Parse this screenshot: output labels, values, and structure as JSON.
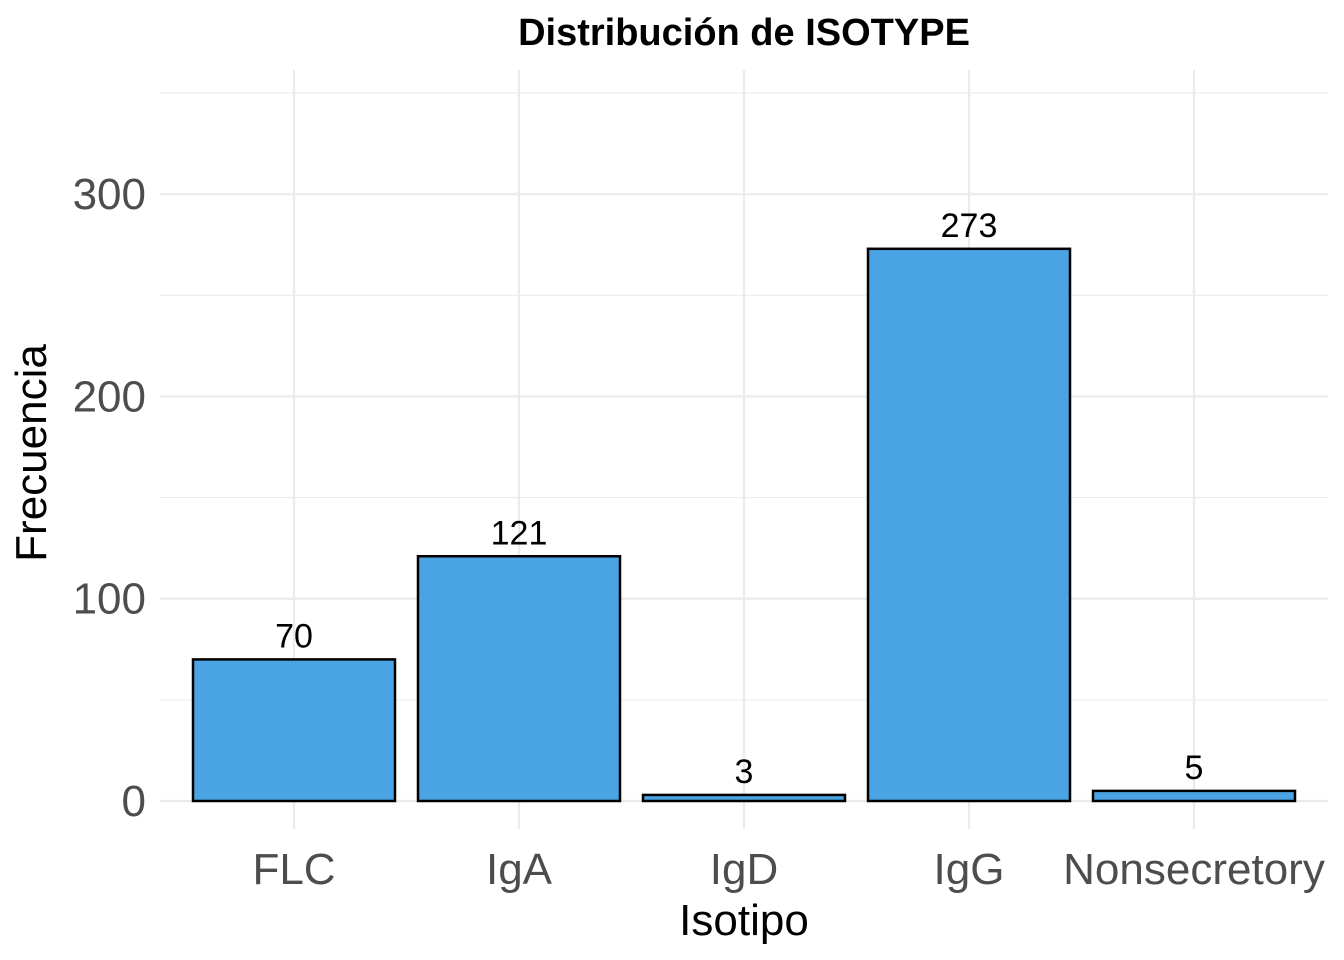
{
  "chart_data": {
    "type": "bar",
    "title": "Distribución de ISOTYPE",
    "xlabel": "Isotipo",
    "ylabel": "Frecuencia",
    "categories": [
      "FLC",
      "IgA",
      "IgD",
      "IgG",
      "Nonsecretory"
    ],
    "values": [
      70,
      121,
      3,
      273,
      5
    ],
    "data_labels": [
      "70",
      "121",
      "3",
      "273",
      "5"
    ],
    "ylim": [
      0,
      350
    ],
    "yticks": [
      0,
      100,
      200,
      300
    ],
    "ytick_labels": [
      "0",
      "100",
      "200",
      "300"
    ],
    "grid": true,
    "legend": "none",
    "bar_color": "#4aa4e3",
    "bar_edge_color": "#000000"
  }
}
